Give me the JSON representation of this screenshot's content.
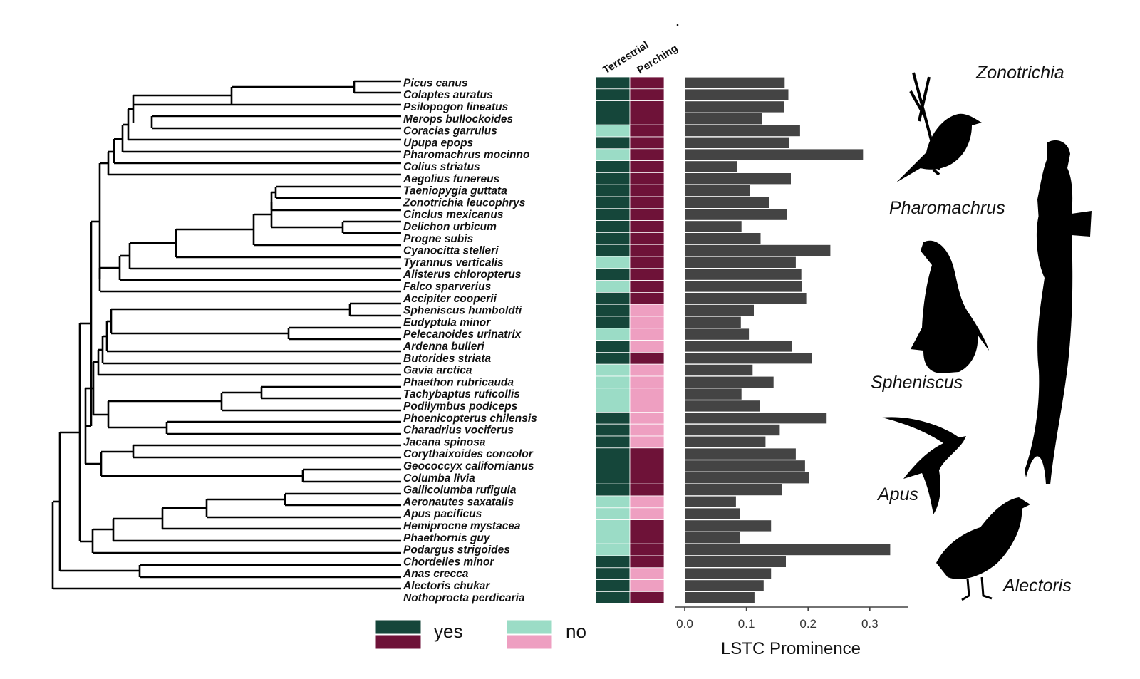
{
  "colors": {
    "yes_terrestrial": "#15463a",
    "yes_perching": "#6e1238",
    "no_terrestrial": "#9bdcc6",
    "no_perching": "#ee9fc1",
    "bar": "#444444"
  },
  "heatmap": {
    "columns": [
      "Terrestrial",
      "Perching"
    ]
  },
  "legend": {
    "yes_label": "yes",
    "no_label": "no"
  },
  "chart_data": {
    "type": "bar",
    "orientation": "horizontal",
    "xlabel": "LSTC Prominence",
    "xlim": [
      0.0,
      0.35
    ],
    "xticks": [
      "0.0",
      "0.1",
      "0.2",
      "0.3"
    ],
    "categories": [
      "Picus canus",
      "Colaptes auratus",
      "Psilopogon lineatus",
      "Merops bullockoides",
      "Coracias garrulus",
      "Upupa epops",
      "Pharomachrus mocinno",
      "Colius striatus",
      "Aegolius funereus",
      "Taeniopygia guttata",
      "Zonotrichia leucophrys",
      "Cinclus mexicanus",
      "Delichon urbicum",
      "Progne subis",
      "Cyanocitta stelleri",
      "Tyrannus verticalis",
      "Alisterus chloropterus",
      "Falco sparverius",
      "Accipiter cooperii",
      "Spheniscus humboldti",
      "Eudyptula minor",
      "Pelecanoides urinatrix",
      "Ardenna bulleri",
      "Butorides striata",
      "Gavia arctica",
      "Phaethon rubricauda",
      "Tachybaptus ruficollis",
      "Podilymbus podiceps",
      "Phoenicopterus chilensis",
      "Charadrius vociferus",
      "Jacana spinosa",
      "Corythaixoides concolor",
      "Geococcyx californianus",
      "Columba livia",
      "Gallicolumba rufigula",
      "Aeronautes saxatalis",
      "Apus pacificus",
      "Hemiprocne mystacea",
      "Phaethornis guy",
      "Podargus strigoides",
      "Chordeiles minor",
      "Anas crecca",
      "Alectoris chukar",
      "Nothoprocta perdicaria"
    ],
    "values": [
      0.162,
      0.168,
      0.161,
      0.125,
      0.187,
      0.169,
      0.289,
      0.085,
      0.172,
      0.106,
      0.137,
      0.166,
      0.092,
      0.123,
      0.236,
      0.18,
      0.189,
      0.19,
      0.197,
      0.112,
      0.091,
      0.104,
      0.174,
      0.206,
      0.11,
      0.144,
      0.092,
      0.122,
      0.23,
      0.154,
      0.131,
      0.18,
      0.195,
      0.201,
      0.158,
      0.083,
      0.089,
      0.14,
      0.089,
      0.333,
      0.164,
      0.14,
      0.128,
      0.113
    ],
    "terrestrial": [
      "yes",
      "yes",
      "yes",
      "yes",
      "no",
      "yes",
      "no",
      "yes",
      "yes",
      "yes",
      "yes",
      "yes",
      "yes",
      "yes",
      "yes",
      "no",
      "yes",
      "no",
      "yes",
      "yes",
      "yes",
      "no",
      "yes",
      "yes",
      "no",
      "no",
      "no",
      "no",
      "yes",
      "yes",
      "yes",
      "yes",
      "yes",
      "yes",
      "yes",
      "no",
      "no",
      "no",
      "no",
      "no",
      "yes",
      "yes",
      "yes",
      "yes"
    ],
    "perching": [
      "yes",
      "yes",
      "yes",
      "yes",
      "yes",
      "yes",
      "yes",
      "yes",
      "yes",
      "yes",
      "yes",
      "yes",
      "yes",
      "yes",
      "yes",
      "yes",
      "yes",
      "yes",
      "yes",
      "no",
      "no",
      "no",
      "no",
      "yes",
      "no",
      "no",
      "no",
      "no",
      "no",
      "no",
      "no",
      "yes",
      "yes",
      "yes",
      "yes",
      "no",
      "no",
      "yes",
      "yes",
      "yes",
      "yes",
      "no",
      "no",
      "yes"
    ]
  },
  "silhouettes": [
    {
      "label": "Zonotrichia",
      "icon": "sparrow-silhouette"
    },
    {
      "label": "Pharomachrus",
      "icon": "quetzal-silhouette"
    },
    {
      "label": "Spheniscus",
      "icon": "penguin-silhouette"
    },
    {
      "label": "Apus",
      "icon": "swift-silhouette"
    },
    {
      "label": "Alectoris",
      "icon": "partridge-silhouette"
    }
  ]
}
